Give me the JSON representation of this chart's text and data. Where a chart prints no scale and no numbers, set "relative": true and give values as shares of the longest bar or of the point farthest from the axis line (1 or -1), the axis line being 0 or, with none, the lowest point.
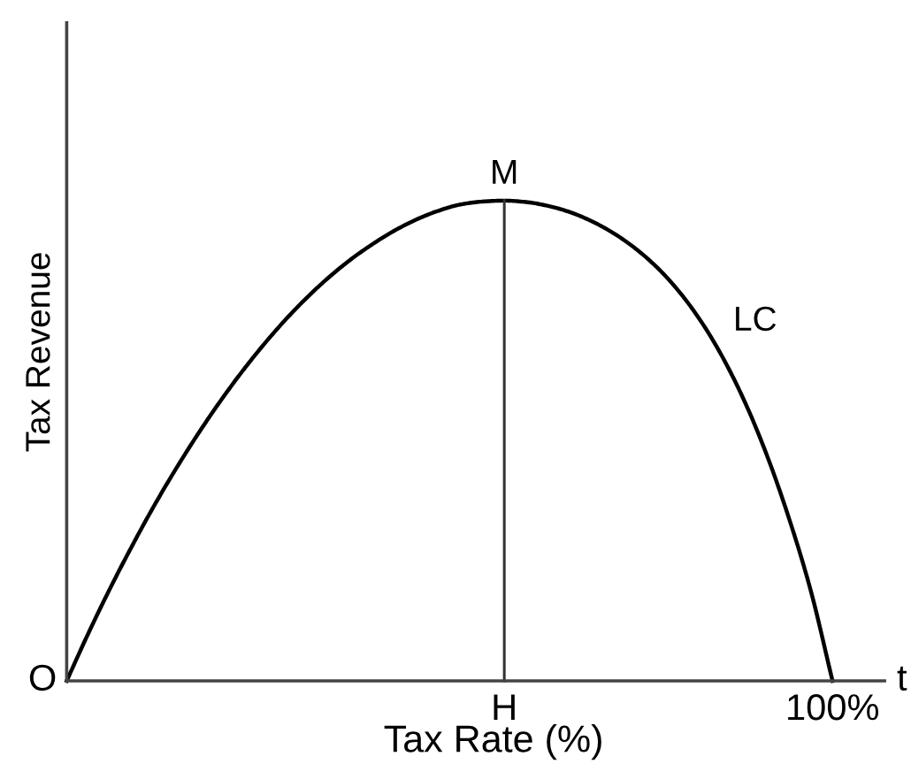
{
  "chart_data": {
    "type": "line",
    "xlabel": "Tax Rate (%)",
    "ylabel": "Tax Revenue",
    "relative": true,
    "grid": false,
    "line_style": "solid",
    "categories": [
      null,
      null,
      null,
      null,
      null,
      null,
      null,
      null,
      null,
      null,
      null,
      null,
      null,
      null,
      null,
      null,
      null,
      null,
      null,
      null,
      "H",
      null,
      null,
      null,
      null,
      null,
      null,
      null,
      null,
      null,
      null,
      null,
      null,
      null,
      null,
      "100%"
    ],
    "series": [
      {
        "name": "LC",
        "color": "#000000",
        "values": [
          0,
          0.1,
          0.194,
          0.282,
          0.365,
          0.442,
          0.514,
          0.581,
          0.643,
          0.7,
          0.752,
          0.799,
          0.841,
          0.878,
          0.91,
          0.938,
          0.961,
          0.979,
          0.992,
          0.998,
          1.0,
          0.997,
          0.989,
          0.976,
          0.957,
          0.932,
          0.9,
          0.86,
          0.81,
          0.748,
          0.672,
          0.58,
          0.47,
          0.34,
          0.189,
          0
        ]
      },
      {
        "color": "#333333",
        "x": [
          "H",
          "H"
        ],
        "values": [
          0,
          1
        ]
      }
    ],
    "annotations": [
      "O",
      {
        "text": "M",
        "x": "H",
        "y": 1
      },
      "t"
    ]
  }
}
